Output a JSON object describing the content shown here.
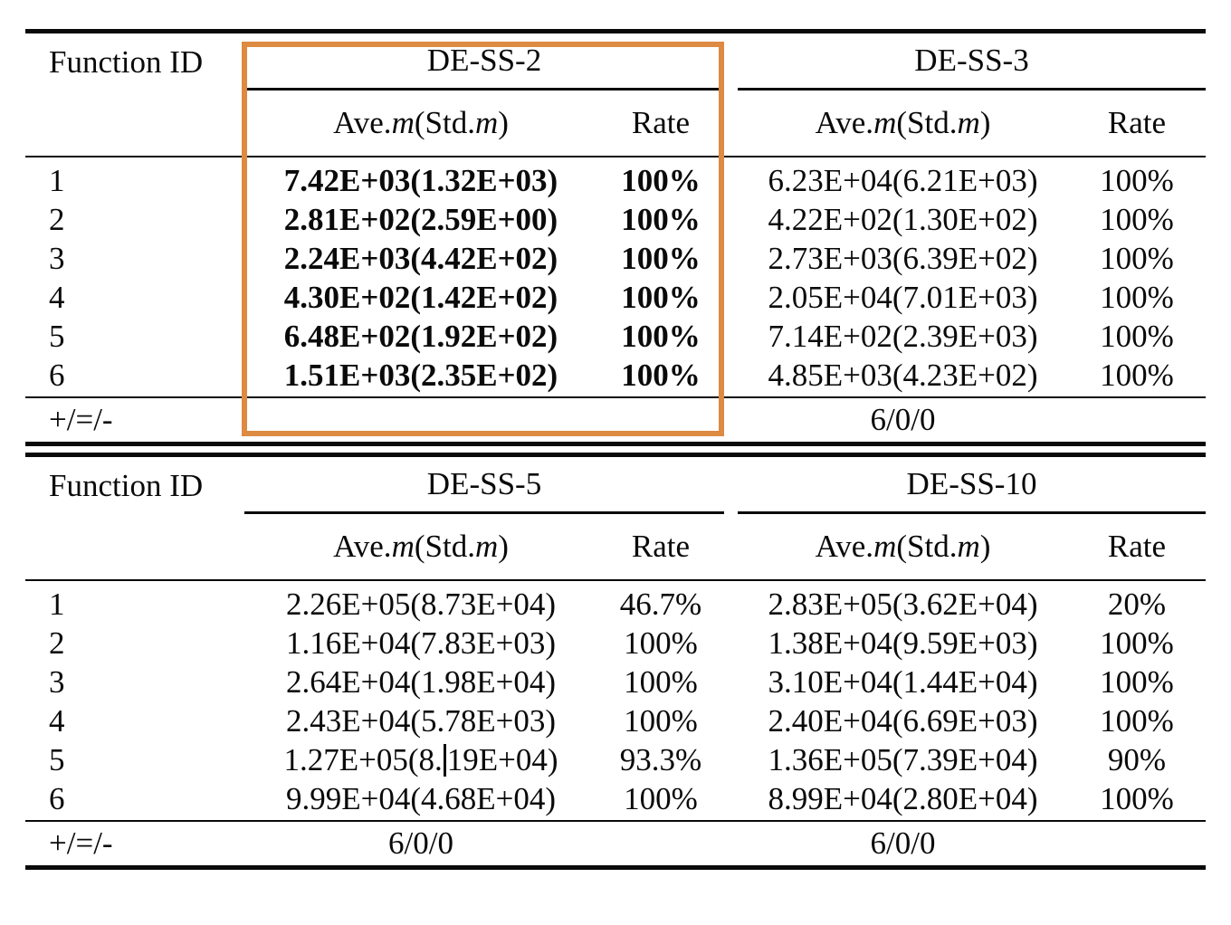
{
  "colors": {
    "highlight_box": "#dd8a42",
    "text": "#000000",
    "background": "#ffffff"
  },
  "column_headers": {
    "ave_pre": "Ave.",
    "ave_m": "m",
    "ave_mid": "(Std.",
    "ave_m2": "m",
    "ave_close": ")",
    "rate": "Rate"
  },
  "tables": [
    {
      "row_header": "Function ID",
      "groups": [
        {
          "name": "DE-SS-2"
        },
        {
          "name": "DE-SS-3"
        }
      ],
      "rows": [
        {
          "id": "1",
          "g1_ave": "7.42E+03(1.32E+03)",
          "g1_rate": "100%",
          "g2_ave": "6.23E+04(6.21E+03)",
          "g2_rate": "100%"
        },
        {
          "id": "2",
          "g1_ave": "2.81E+02(2.59E+00)",
          "g1_rate": "100%",
          "g2_ave": "4.22E+02(1.30E+02)",
          "g2_rate": "100%"
        },
        {
          "id": "3",
          "g1_ave": "2.24E+03(4.42E+02)",
          "g1_rate": "100%",
          "g2_ave": "2.73E+03(6.39E+02)",
          "g2_rate": "100%"
        },
        {
          "id": "4",
          "g1_ave": "4.30E+02(1.42E+02)",
          "g1_rate": "100%",
          "g2_ave": "2.05E+04(7.01E+03)",
          "g2_rate": "100%"
        },
        {
          "id": "5",
          "g1_ave": "6.48E+02(1.92E+02)",
          "g1_rate": "100%",
          "g2_ave": "7.14E+02(2.39E+03)",
          "g2_rate": "100%"
        },
        {
          "id": "6",
          "g1_ave": "1.51E+03(2.35E+02)",
          "g1_rate": "100%",
          "g2_ave": "4.85E+03(4.23E+02)",
          "g2_rate": "100%"
        }
      ],
      "footer": {
        "label": "+/=/-",
        "g1": "",
        "g2": "6/0/0"
      }
    },
    {
      "row_header": "Function ID",
      "groups": [
        {
          "name": "DE-SS-5"
        },
        {
          "name": "DE-SS-10"
        }
      ],
      "rows": [
        {
          "id": "1",
          "g1_ave": "2.26E+05(8.73E+04)",
          "g1_rate": "46.7%",
          "g2_ave": "2.83E+05(3.62E+04)",
          "g2_rate": "20%"
        },
        {
          "id": "2",
          "g1_ave": "1.16E+04(7.83E+03)",
          "g1_rate": "100%",
          "g2_ave": "1.38E+04(9.59E+03)",
          "g2_rate": "100%"
        },
        {
          "id": "3",
          "g1_ave": "2.64E+04(1.98E+04)",
          "g1_rate": "100%",
          "g2_ave": "3.10E+04(1.44E+04)",
          "g2_rate": "100%"
        },
        {
          "id": "4",
          "g1_ave": "2.43E+04(5.78E+03)",
          "g1_rate": "100%",
          "g2_ave": "2.40E+04(6.69E+03)",
          "g2_rate": "100%"
        },
        {
          "id": "5",
          "g1_ave_pre": "1.27E+05(8.",
          "g1_ave_post": "19E+04)",
          "g1_rate": "93.3%",
          "g2_ave": "1.36E+05(7.39E+04)",
          "g2_rate": "90%"
        },
        {
          "id": "6",
          "g1_ave": "9.99E+04(4.68E+04)",
          "g1_rate": "100%",
          "g2_ave": "8.99E+04(2.80E+04)",
          "g2_rate": "100%"
        }
      ],
      "footer": {
        "label": "+/=/-",
        "g1": "6/0/0",
        "g2": "6/0/0"
      }
    }
  ]
}
